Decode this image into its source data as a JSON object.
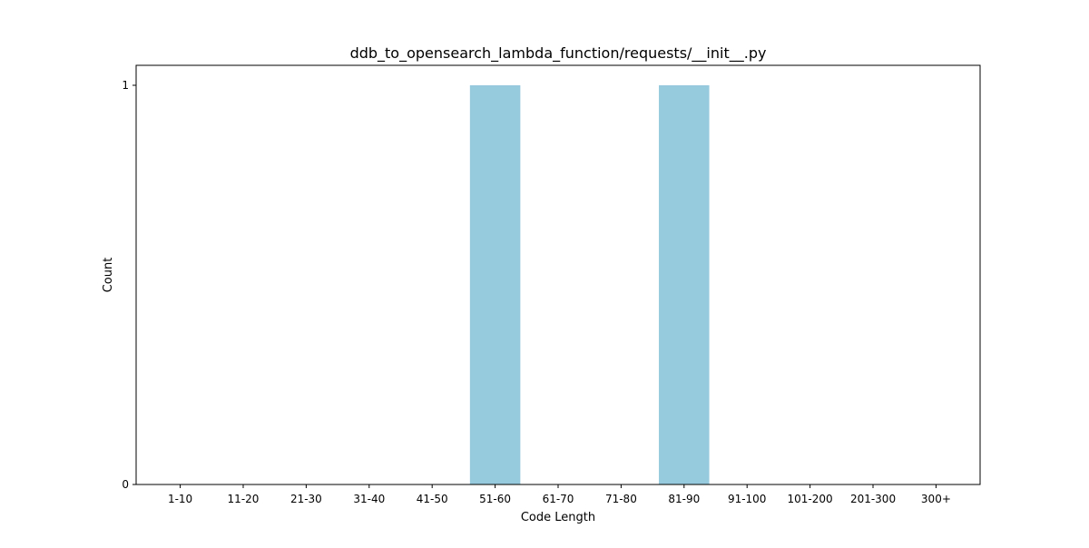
{
  "chart_data": {
    "type": "bar",
    "title": "ddb_to_opensearch_lambda_function/requests/__init__.py",
    "xlabel": "Code Length",
    "ylabel": "Count",
    "categories": [
      "1-10",
      "11-20",
      "21-30",
      "31-40",
      "41-50",
      "51-60",
      "61-70",
      "71-80",
      "81-90",
      "91-100",
      "101-200",
      "201-300",
      "300+"
    ],
    "values": [
      0,
      0,
      0,
      0,
      0,
      1,
      0,
      0,
      1,
      0,
      0,
      0,
      0
    ],
    "yticks": [
      0,
      1
    ],
    "ylim": [
      0,
      1.05
    ],
    "grid": false,
    "bar_color": "#96cadd"
  }
}
